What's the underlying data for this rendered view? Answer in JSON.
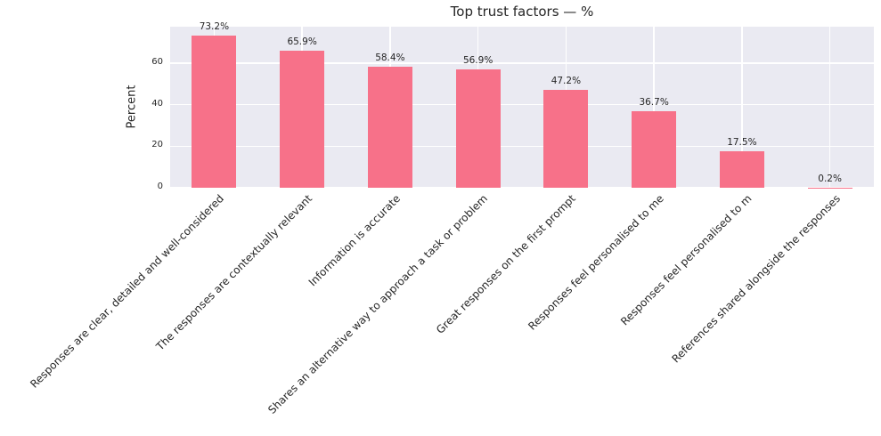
{
  "chart_data": {
    "type": "bar",
    "title": "Top trust factors — %",
    "xlabel": "",
    "ylabel": "Percent",
    "categories": [
      "Responses are clear, detailed and well-considered",
      "The responses are contextually relevant",
      "Information is accurate",
      "Shares an alternative way to approach a task or problem",
      "Great responses on the first prompt",
      "Responses feel personalised to me",
      "Responses feel personalised to m",
      "References shared alongside the responses"
    ],
    "values": [
      73.2,
      65.9,
      58.4,
      56.9,
      47.2,
      36.7,
      17.5,
      0.2
    ],
    "value_labels": [
      "73.2%",
      "65.9%",
      "58.4%",
      "56.9%",
      "47.2%",
      "36.7%",
      "17.5%",
      "0.2%"
    ],
    "yticks": [
      0,
      20,
      40,
      60
    ],
    "ylim": [
      0,
      77.5
    ],
    "grid": "on",
    "legend": "none",
    "x_tick_rotation_deg": 45,
    "colors": {
      "bar": "#f77189",
      "plot_background": "#eaeaf2",
      "gridline": "#ffffff",
      "text": "#262626",
      "figure_background": "#ffffff"
    }
  }
}
